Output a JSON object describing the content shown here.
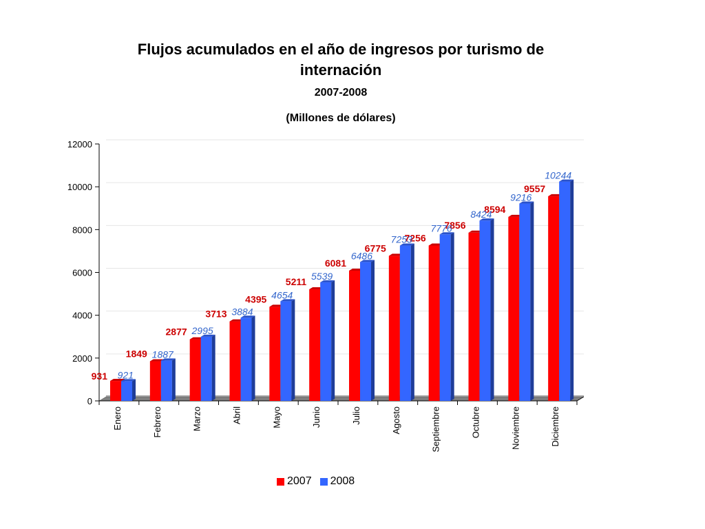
{
  "chart_data": {
    "type": "bar",
    "title_line1": "Flujos acumulados en el año de ingresos por  turismo  de",
    "title_line2": "internación",
    "subtitle": "2007-2008",
    "units": "(Millones de dólares)",
    "categories": [
      "Enero",
      "Febrero",
      "Marzo",
      "Abril",
      "Mayo",
      "Junio",
      "Julio",
      "Agosto",
      "Septiembre",
      "Octubre",
      "Noviembre",
      "Diciembre"
    ],
    "series": [
      {
        "name": "2007",
        "color": "#ff0000",
        "label_color": "#cc0000",
        "values": [
          931,
          1849,
          2877,
          3713,
          4395,
          5211,
          6081,
          6775,
          7256,
          7856,
          8594,
          9557
        ]
      },
      {
        "name": "2008",
        "color": "#3366ff",
        "label_color": "#3366cc",
        "values": [
          921,
          1887,
          2995,
          3884,
          4654,
          5539,
          6486,
          7253,
          7776,
          8424,
          9216,
          10244
        ]
      }
    ],
    "yticks": [
      0,
      2000,
      4000,
      6000,
      8000,
      10000,
      12000
    ],
    "ylim": [
      0,
      12000
    ],
    "grid": true,
    "legend": "bottom"
  }
}
